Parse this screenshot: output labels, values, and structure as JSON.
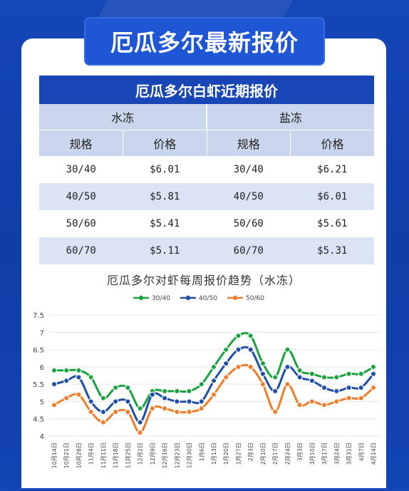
{
  "banner_title": "厄瓜多尔最新报价",
  "table": {
    "title": "厄瓜多尔白虾近期报价",
    "groups": [
      "水冻",
      "盐冻"
    ],
    "headers": [
      "规格",
      "价格",
      "规格",
      "价格"
    ],
    "rows": [
      [
        "30/40",
        "$6.01",
        "30/40",
        "$6.21"
      ],
      [
        "40/50",
        "$5.81",
        "40/50",
        "$6.01"
      ],
      [
        "50/60",
        "$5.41",
        "50/60",
        "$5.61"
      ],
      [
        "60/70",
        "$5.11",
        "60/70",
        "$5.31"
      ]
    ]
  },
  "chart_data": {
    "type": "line",
    "title": "厄瓜多尔对虾每周报价趋势（水冻）",
    "legend_position": "top-center",
    "ylim": [
      4,
      7.5
    ],
    "yticks": [
      "4",
      "4.5",
      "5",
      "5.5",
      "6",
      "6.5",
      "7",
      "7.5"
    ],
    "x": [
      "10月14日",
      "10月21日",
      "10月28日",
      "11月4日",
      "11月11日",
      "11月18日",
      "11月25日",
      "12月2日",
      "12月9日",
      "12月16日",
      "12月23日",
      "12月30日",
      "1月6日",
      "1月13日",
      "1月20日",
      "1月27日",
      "2月3日",
      "2月10日",
      "2月17日",
      "2月24日",
      "3月3日",
      "3月10日",
      "3月17日",
      "3月24日",
      "3月31日",
      "4月7日",
      "4月14日"
    ],
    "series": [
      {
        "name": "30/40",
        "color": "#1aa340",
        "values": [
          5.9,
          5.9,
          5.9,
          5.7,
          5.1,
          5.4,
          5.4,
          4.8,
          5.3,
          5.3,
          5.3,
          5.3,
          5.5,
          6.0,
          6.5,
          6.9,
          6.9,
          6.1,
          5.7,
          6.5,
          5.9,
          5.8,
          5.7,
          5.7,
          5.8,
          5.8,
          6.0
        ]
      },
      {
        "name": "40/50",
        "color": "#1f4fa8",
        "values": [
          5.5,
          5.6,
          5.7,
          5.0,
          4.7,
          5.0,
          5.0,
          4.4,
          5.2,
          5.1,
          5.0,
          5.0,
          5.0,
          5.6,
          6.1,
          6.5,
          6.5,
          5.8,
          5.3,
          6.0,
          5.7,
          5.6,
          5.4,
          5.3,
          5.4,
          5.4,
          5.8
        ]
      },
      {
        "name": "50/60",
        "color": "#ef7d2a",
        "values": [
          4.9,
          5.1,
          5.2,
          4.7,
          4.4,
          4.7,
          4.7,
          4.1,
          4.8,
          4.8,
          4.7,
          4.7,
          4.8,
          5.2,
          5.7,
          6.0,
          6.0,
          5.5,
          4.7,
          5.5,
          4.9,
          5.0,
          4.9,
          5.0,
          5.1,
          5.1,
          5.4
        ]
      }
    ]
  }
}
